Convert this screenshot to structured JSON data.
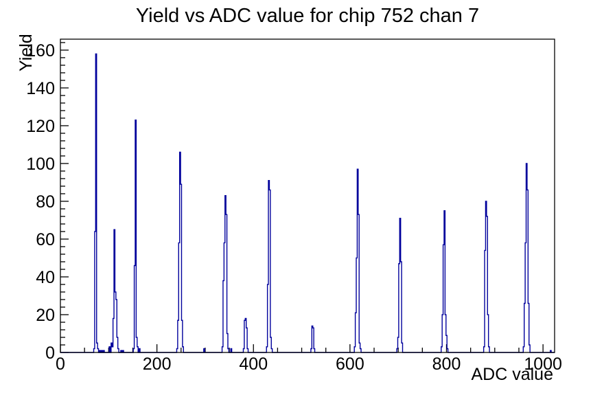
{
  "chart_data": {
    "type": "bar",
    "title": "Yield vs ADC value for chip 752 chan 7",
    "xlabel": "ADC value",
    "ylabel": "Yield",
    "xlim": [
      0,
      1024
    ],
    "ylim": [
      0,
      165.8
    ],
    "x_major_ticks": [
      0,
      200,
      400,
      600,
      800,
      1000
    ],
    "x_minor_step": 50,
    "y_major_ticks": [
      0,
      20,
      40,
      60,
      80,
      100,
      120,
      140,
      160
    ],
    "y_minor_step": 4,
    "bin_width": 2,
    "legend": "none",
    "grid": false,
    "colors": {
      "line": "#00009c",
      "axis": "#000000",
      "background": "#ffffff",
      "text": "#000000"
    },
    "bins": [
      [
        70,
        2
      ],
      [
        72,
        64
      ],
      [
        74,
        158
      ],
      [
        76,
        5
      ],
      [
        78,
        2
      ],
      [
        82,
        1
      ],
      [
        86,
        1
      ],
      [
        90,
        1
      ],
      [
        102,
        3
      ],
      [
        106,
        5
      ],
      [
        108,
        3
      ],
      [
        110,
        18
      ],
      [
        112,
        65
      ],
      [
        114,
        32
      ],
      [
        116,
        28
      ],
      [
        118,
        8
      ],
      [
        120,
        2
      ],
      [
        126,
        1
      ],
      [
        130,
        1
      ],
      [
        152,
        2
      ],
      [
        154,
        46
      ],
      [
        156,
        123
      ],
      [
        158,
        8
      ],
      [
        160,
        3
      ],
      [
        164,
        2
      ],
      [
        242,
        2
      ],
      [
        244,
        17
      ],
      [
        246,
        58
      ],
      [
        248,
        106
      ],
      [
        250,
        89
      ],
      [
        252,
        17
      ],
      [
        254,
        3
      ],
      [
        298,
        2
      ],
      [
        336,
        3
      ],
      [
        338,
        38
      ],
      [
        340,
        58
      ],
      [
        342,
        83
      ],
      [
        344,
        73
      ],
      [
        346,
        10
      ],
      [
        348,
        2
      ],
      [
        354,
        2
      ],
      [
        380,
        2
      ],
      [
        382,
        17
      ],
      [
        384,
        18
      ],
      [
        386,
        13
      ],
      [
        388,
        2
      ],
      [
        428,
        3
      ],
      [
        430,
        36
      ],
      [
        432,
        91
      ],
      [
        434,
        86
      ],
      [
        436,
        8
      ],
      [
        438,
        2
      ],
      [
        520,
        2
      ],
      [
        522,
        14
      ],
      [
        524,
        13
      ],
      [
        526,
        2
      ],
      [
        610,
        3
      ],
      [
        612,
        21
      ],
      [
        614,
        50
      ],
      [
        616,
        97
      ],
      [
        618,
        73
      ],
      [
        620,
        5
      ],
      [
        622,
        2
      ],
      [
        698,
        2
      ],
      [
        700,
        8
      ],
      [
        702,
        47
      ],
      [
        704,
        71
      ],
      [
        706,
        48
      ],
      [
        708,
        5
      ],
      [
        790,
        3
      ],
      [
        792,
        20
      ],
      [
        794,
        57
      ],
      [
        796,
        75
      ],
      [
        798,
        20
      ],
      [
        800,
        9
      ],
      [
        802,
        2
      ],
      [
        878,
        3
      ],
      [
        880,
        54
      ],
      [
        882,
        80
      ],
      [
        884,
        72
      ],
      [
        886,
        20
      ],
      [
        888,
        3
      ],
      [
        960,
        3
      ],
      [
        962,
        26
      ],
      [
        964,
        58
      ],
      [
        966,
        100
      ],
      [
        968,
        86
      ],
      [
        970,
        26
      ],
      [
        972,
        4
      ],
      [
        1016,
        1
      ]
    ]
  }
}
